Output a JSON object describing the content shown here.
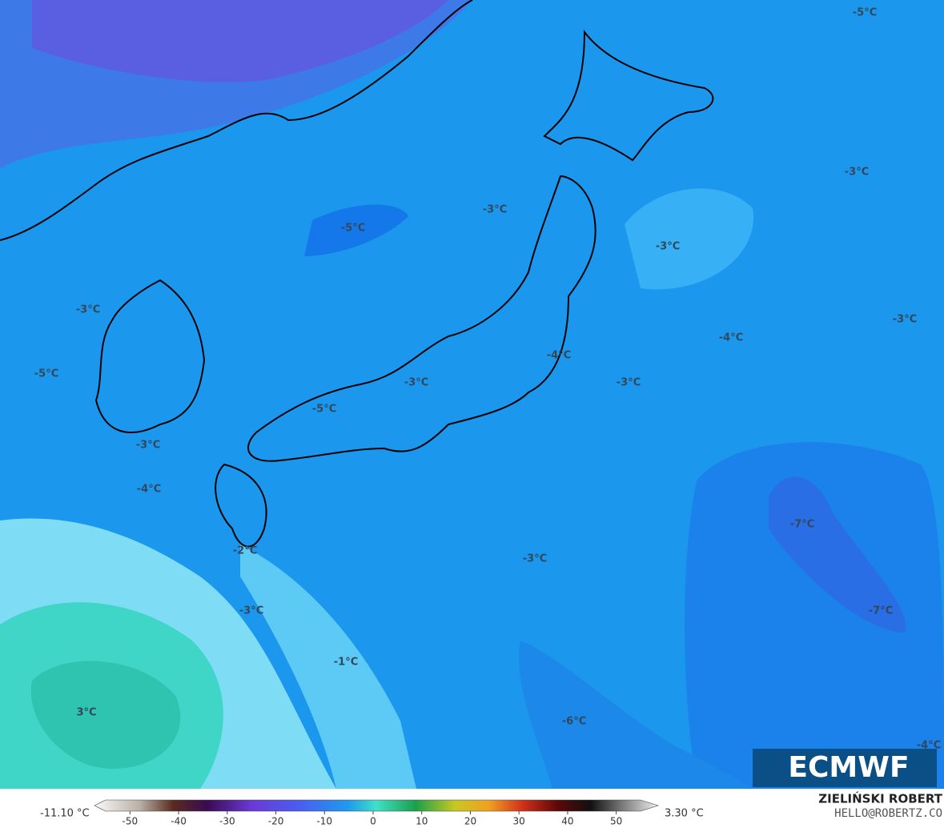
{
  "map": {
    "labels": [
      "-5°C",
      "-3°C",
      "-3°C",
      "-5°C",
      "-3°C",
      "-3°C",
      "-3°C",
      "-4°C",
      "-4°C",
      "-5°C",
      "-3°C",
      "-3°C",
      "-5°C",
      "-3°C",
      "-4°C",
      "-7°C",
      "-2°C",
      "-3°C",
      "-7°C",
      "-3°C",
      "-1°C",
      "3°C",
      "-6°C",
      "-4°C"
    ],
    "logo": "ECMWF"
  },
  "colorbar": {
    "min_label": "-11.10 °C",
    "max_label": "3.30 °C",
    "range": [
      -55,
      55
    ],
    "ticks": [
      -50,
      -40,
      -30,
      -20,
      -10,
      0,
      10,
      20,
      30,
      40,
      50
    ]
  },
  "credit": {
    "name": "ZIELIŃSKI ROBERT",
    "email": "HELLO@ROBERTZ.CO"
  }
}
